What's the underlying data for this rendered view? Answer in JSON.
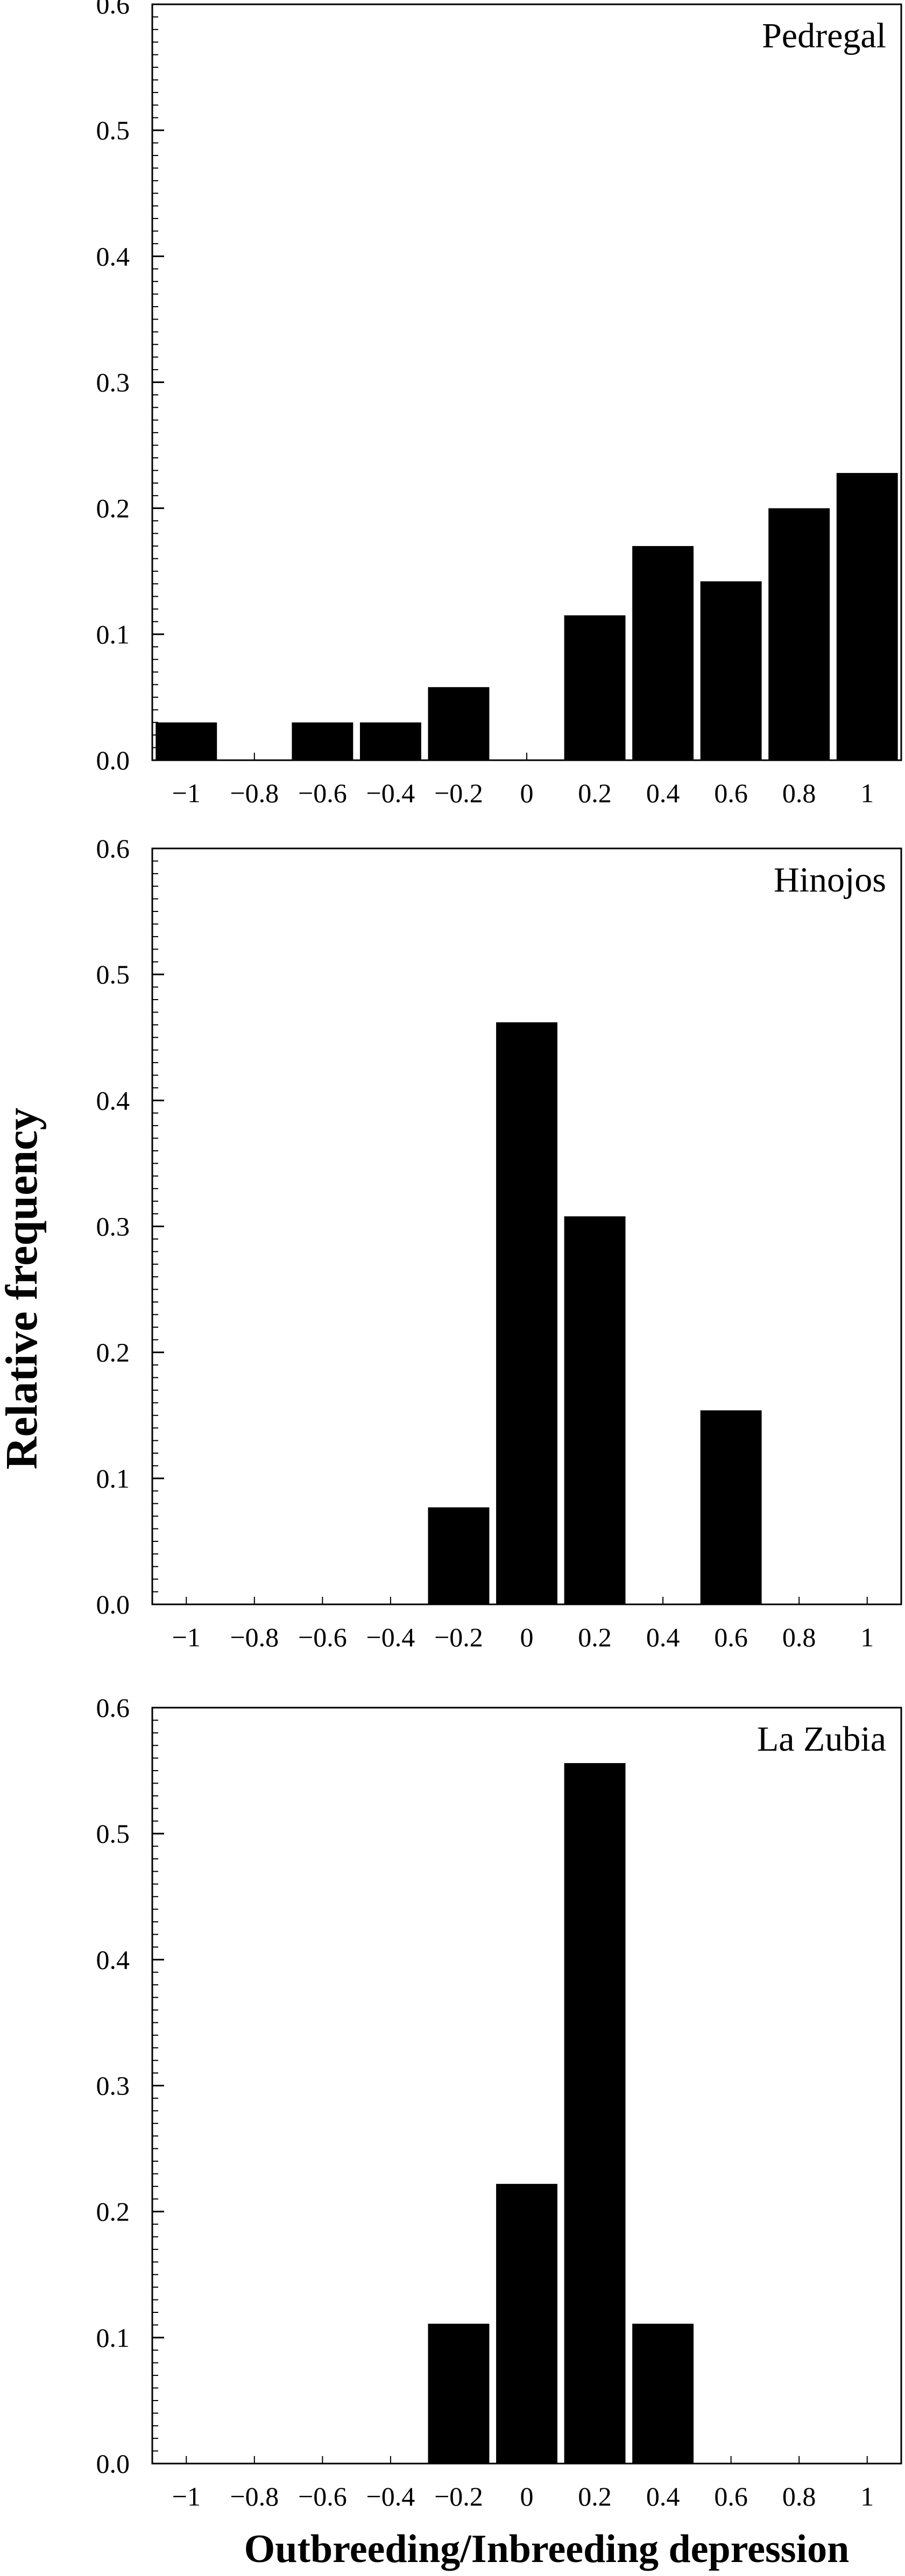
{
  "figure": {
    "ylabel": "Relative frequency",
    "xlabel": "Outbreeding/Inbreeding depression"
  },
  "chart_data": [
    {
      "type": "bar",
      "title": "Pedregal",
      "categories": [
        "−1",
        "−0.8",
        "−0.6",
        "−0.4",
        "−0.2",
        "0",
        "0.2",
        "0.4",
        "0.6",
        "0.8",
        "1"
      ],
      "values": [
        0.03,
        0.0,
        0.03,
        0.03,
        0.058,
        0.0,
        0.115,
        0.17,
        0.142,
        0.2,
        0.228
      ],
      "ylim": [
        0,
        0.6
      ],
      "yticks": [
        "0.0",
        "0.1",
        "0.2",
        "0.3",
        "0.4",
        "0.5",
        "0.6"
      ],
      "grid": false
    },
    {
      "type": "bar",
      "title": "Hinojos",
      "categories": [
        "−1",
        "−0.8",
        "−0.6",
        "−0.4",
        "−0.2",
        "0",
        "0.2",
        "0.4",
        "0.6",
        "0.8",
        "1"
      ],
      "values": [
        0.0,
        0.0,
        0.0,
        0.0,
        0.077,
        0.462,
        0.308,
        0.0,
        0.154,
        0.0,
        0.0
      ],
      "ylim": [
        0,
        0.6
      ],
      "yticks": [
        "0.0",
        "0.1",
        "0.2",
        "0.3",
        "0.4",
        "0.5",
        "0.6"
      ],
      "grid": false
    },
    {
      "type": "bar",
      "title": "La Zubia",
      "categories": [
        "−1",
        "−0.8",
        "−0.6",
        "−0.4",
        "−0.2",
        "0",
        "0.2",
        "0.4",
        "0.6",
        "0.8",
        "1"
      ],
      "values": [
        0.0,
        0.0,
        0.0,
        0.0,
        0.111,
        0.222,
        0.556,
        0.111,
        0.0,
        0.0,
        0.0
      ],
      "ylim": [
        0,
        0.6
      ],
      "yticks": [
        "0.0",
        "0.1",
        "0.2",
        "0.3",
        "0.4",
        "0.5",
        "0.6"
      ],
      "grid": false
    }
  ]
}
